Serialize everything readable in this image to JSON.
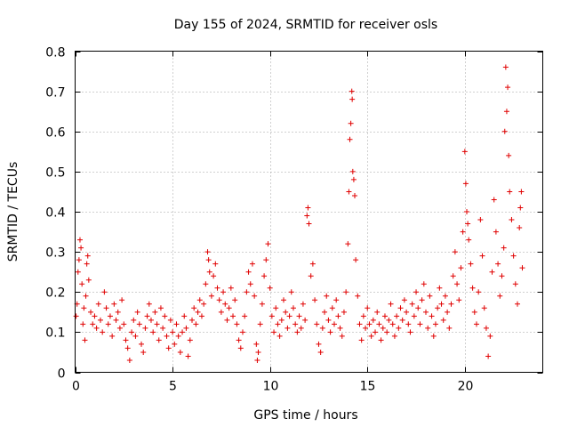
{
  "chart_data": {
    "type": "scatter",
    "title": "Day 155 of 2024, SRMTID for receiver osls",
    "xlabel": "GPS time / hours",
    "ylabel": "SRMTID / TECUs",
    "xlim": [
      0,
      24
    ],
    "ylim": [
      0,
      0.8
    ],
    "xticks": [
      0,
      5,
      10,
      15,
      20
    ],
    "yticks": [
      0,
      0.1,
      0.2,
      0.3,
      0.4,
      0.5,
      0.6,
      0.7,
      0.8
    ],
    "xtick_labels": [
      "0",
      "5",
      "10",
      "15",
      "20"
    ],
    "ytick_labels": [
      "0",
      "0.1",
      "0.2",
      "0.3",
      "0.4",
      "0.5",
      "0.6",
      "0.7",
      "0.8"
    ],
    "grid": true,
    "marker": "+",
    "color": "#e00000",
    "series": [
      {
        "name": "SRMTID",
        "points": [
          [
            0.05,
            0.14
          ],
          [
            0.1,
            0.17
          ],
          [
            0.15,
            0.25
          ],
          [
            0.2,
            0.28
          ],
          [
            0.25,
            0.33
          ],
          [
            0.3,
            0.31
          ],
          [
            0.35,
            0.22
          ],
          [
            0.4,
            0.12
          ],
          [
            0.45,
            0.16
          ],
          [
            0.5,
            0.08
          ],
          [
            0.55,
            0.19
          ],
          [
            0.6,
            0.27
          ],
          [
            0.65,
            0.29
          ],
          [
            0.7,
            0.23
          ],
          [
            0.8,
            0.15
          ],
          [
            0.9,
            0.12
          ],
          [
            1.0,
            0.14
          ],
          [
            1.1,
            0.11
          ],
          [
            1.2,
            0.17
          ],
          [
            1.3,
            0.13
          ],
          [
            1.4,
            0.1
          ],
          [
            1.5,
            0.2
          ],
          [
            1.6,
            0.16
          ],
          [
            1.7,
            0.12
          ],
          [
            1.8,
            0.14
          ],
          [
            1.9,
            0.09
          ],
          [
            2.0,
            0.17
          ],
          [
            2.1,
            0.13
          ],
          [
            2.2,
            0.15
          ],
          [
            2.3,
            0.11
          ],
          [
            2.4,
            0.18
          ],
          [
            2.5,
            0.12
          ],
          [
            2.6,
            0.08
          ],
          [
            2.7,
            0.06
          ],
          [
            2.8,
            0.03
          ],
          [
            2.9,
            0.1
          ],
          [
            3.0,
            0.13
          ],
          [
            3.1,
            0.09
          ],
          [
            3.2,
            0.15
          ],
          [
            3.3,
            0.12
          ],
          [
            3.4,
            0.07
          ],
          [
            3.5,
            0.05
          ],
          [
            3.6,
            0.11
          ],
          [
            3.7,
            0.14
          ],
          [
            3.8,
            0.17
          ],
          [
            3.9,
            0.13
          ],
          [
            4.0,
            0.1
          ],
          [
            4.1,
            0.15
          ],
          [
            4.2,
            0.12
          ],
          [
            4.3,
            0.08
          ],
          [
            4.4,
            0.16
          ],
          [
            4.5,
            0.11
          ],
          [
            4.6,
            0.14
          ],
          [
            4.7,
            0.09
          ],
          [
            4.8,
            0.06
          ],
          [
            4.9,
            0.13
          ],
          [
            5.0,
            0.1
          ],
          [
            5.1,
            0.07
          ],
          [
            5.2,
            0.12
          ],
          [
            5.3,
            0.09
          ],
          [
            5.4,
            0.05
          ],
          [
            5.5,
            0.1
          ],
          [
            5.6,
            0.14
          ],
          [
            5.7,
            0.11
          ],
          [
            5.8,
            0.04
          ],
          [
            5.9,
            0.08
          ],
          [
            6.0,
            0.13
          ],
          [
            6.1,
            0.16
          ],
          [
            6.2,
            0.12
          ],
          [
            6.3,
            0.15
          ],
          [
            6.4,
            0.18
          ],
          [
            6.5,
            0.14
          ],
          [
            6.6,
            0.17
          ],
          [
            6.7,
            0.22
          ],
          [
            6.8,
            0.3
          ],
          [
            6.85,
            0.28
          ],
          [
            6.9,
            0.25
          ],
          [
            7.0,
            0.19
          ],
          [
            7.1,
            0.24
          ],
          [
            7.2,
            0.27
          ],
          [
            7.3,
            0.21
          ],
          [
            7.4,
            0.18
          ],
          [
            7.5,
            0.15
          ],
          [
            7.6,
            0.2
          ],
          [
            7.7,
            0.17
          ],
          [
            7.8,
            0.13
          ],
          [
            7.9,
            0.16
          ],
          [
            8.0,
            0.21
          ],
          [
            8.1,
            0.14
          ],
          [
            8.2,
            0.18
          ],
          [
            8.3,
            0.12
          ],
          [
            8.4,
            0.08
          ],
          [
            8.5,
            0.06
          ],
          [
            8.6,
            0.1
          ],
          [
            8.7,
            0.14
          ],
          [
            8.8,
            0.2
          ],
          [
            8.9,
            0.25
          ],
          [
            9.0,
            0.22
          ],
          [
            9.1,
            0.27
          ],
          [
            9.2,
            0.19
          ],
          [
            9.3,
            0.07
          ],
          [
            9.35,
            0.03
          ],
          [
            9.4,
            0.05
          ],
          [
            9.5,
            0.12
          ],
          [
            9.6,
            0.17
          ],
          [
            9.7,
            0.24
          ],
          [
            9.8,
            0.28
          ],
          [
            9.9,
            0.32
          ],
          [
            10.0,
            0.21
          ],
          [
            10.1,
            0.14
          ],
          [
            10.2,
            0.1
          ],
          [
            10.3,
            0.16
          ],
          [
            10.4,
            0.12
          ],
          [
            10.5,
            0.09
          ],
          [
            10.6,
            0.13
          ],
          [
            10.7,
            0.18
          ],
          [
            10.8,
            0.15
          ],
          [
            10.9,
            0.11
          ],
          [
            11.0,
            0.14
          ],
          [
            11.1,
            0.2
          ],
          [
            11.2,
            0.16
          ],
          [
            11.3,
            0.12
          ],
          [
            11.4,
            0.1
          ],
          [
            11.5,
            0.14
          ],
          [
            11.6,
            0.11
          ],
          [
            11.7,
            0.17
          ],
          [
            11.8,
            0.13
          ],
          [
            11.9,
            0.39
          ],
          [
            11.95,
            0.41
          ],
          [
            12.0,
            0.37
          ],
          [
            12.1,
            0.24
          ],
          [
            12.2,
            0.27
          ],
          [
            12.3,
            0.18
          ],
          [
            12.4,
            0.12
          ],
          [
            12.5,
            0.07
          ],
          [
            12.6,
            0.05
          ],
          [
            12.7,
            0.11
          ],
          [
            12.8,
            0.15
          ],
          [
            12.9,
            0.19
          ],
          [
            13.0,
            0.13
          ],
          [
            13.1,
            0.1
          ],
          [
            13.2,
            0.16
          ],
          [
            13.3,
            0.12
          ],
          [
            13.4,
            0.18
          ],
          [
            13.5,
            0.14
          ],
          [
            13.6,
            0.11
          ],
          [
            13.7,
            0.09
          ],
          [
            13.8,
            0.15
          ],
          [
            13.9,
            0.2
          ],
          [
            14.0,
            0.32
          ],
          [
            14.05,
            0.45
          ],
          [
            14.1,
            0.58
          ],
          [
            14.15,
            0.62
          ],
          [
            14.2,
            0.7
          ],
          [
            14.22,
            0.68
          ],
          [
            14.25,
            0.5
          ],
          [
            14.3,
            0.48
          ],
          [
            14.35,
            0.44
          ],
          [
            14.4,
            0.28
          ],
          [
            14.5,
            0.19
          ],
          [
            14.6,
            0.12
          ],
          [
            14.7,
            0.08
          ],
          [
            14.8,
            0.14
          ],
          [
            14.9,
            0.11
          ],
          [
            15.0,
            0.16
          ],
          [
            15.1,
            0.12
          ],
          [
            15.2,
            0.09
          ],
          [
            15.3,
            0.13
          ],
          [
            15.4,
            0.1
          ],
          [
            15.5,
            0.15
          ],
          [
            15.6,
            0.12
          ],
          [
            15.7,
            0.08
          ],
          [
            15.8,
            0.11
          ],
          [
            15.9,
            0.14
          ],
          [
            16.0,
            0.1
          ],
          [
            16.1,
            0.13
          ],
          [
            16.2,
            0.17
          ],
          [
            16.3,
            0.12
          ],
          [
            16.4,
            0.09
          ],
          [
            16.5,
            0.14
          ],
          [
            16.6,
            0.11
          ],
          [
            16.7,
            0.16
          ],
          [
            16.8,
            0.13
          ],
          [
            16.9,
            0.18
          ],
          [
            17.0,
            0.15
          ],
          [
            17.1,
            0.12
          ],
          [
            17.2,
            0.1
          ],
          [
            17.3,
            0.17
          ],
          [
            17.4,
            0.14
          ],
          [
            17.5,
            0.2
          ],
          [
            17.6,
            0.16
          ],
          [
            17.7,
            0.12
          ],
          [
            17.8,
            0.18
          ],
          [
            17.9,
            0.22
          ],
          [
            18.0,
            0.15
          ],
          [
            18.1,
            0.11
          ],
          [
            18.2,
            0.19
          ],
          [
            18.3,
            0.14
          ],
          [
            18.4,
            0.09
          ],
          [
            18.5,
            0.12
          ],
          [
            18.6,
            0.16
          ],
          [
            18.7,
            0.21
          ],
          [
            18.8,
            0.17
          ],
          [
            18.9,
            0.13
          ],
          [
            19.0,
            0.19
          ],
          [
            19.1,
            0.15
          ],
          [
            19.2,
            0.11
          ],
          [
            19.3,
            0.17
          ],
          [
            19.4,
            0.24
          ],
          [
            19.5,
            0.3
          ],
          [
            19.6,
            0.22
          ],
          [
            19.7,
            0.18
          ],
          [
            19.8,
            0.26
          ],
          [
            19.9,
            0.35
          ],
          [
            20.0,
            0.55
          ],
          [
            20.05,
            0.47
          ],
          [
            20.1,
            0.4
          ],
          [
            20.15,
            0.37
          ],
          [
            20.2,
            0.33
          ],
          [
            20.3,
            0.27
          ],
          [
            20.4,
            0.21
          ],
          [
            20.5,
            0.15
          ],
          [
            20.6,
            0.12
          ],
          [
            20.7,
            0.2
          ],
          [
            20.8,
            0.38
          ],
          [
            20.9,
            0.29
          ],
          [
            21.0,
            0.16
          ],
          [
            21.1,
            0.11
          ],
          [
            21.2,
            0.04
          ],
          [
            21.3,
            0.09
          ],
          [
            21.4,
            0.25
          ],
          [
            21.5,
            0.43
          ],
          [
            21.6,
            0.35
          ],
          [
            21.7,
            0.27
          ],
          [
            21.8,
            0.19
          ],
          [
            21.9,
            0.24
          ],
          [
            22.0,
            0.31
          ],
          [
            22.05,
            0.6
          ],
          [
            22.1,
            0.76
          ],
          [
            22.15,
            0.65
          ],
          [
            22.2,
            0.71
          ],
          [
            22.25,
            0.54
          ],
          [
            22.3,
            0.45
          ],
          [
            22.4,
            0.38
          ],
          [
            22.5,
            0.29
          ],
          [
            22.6,
            0.22
          ],
          [
            22.7,
            0.17
          ],
          [
            22.8,
            0.36
          ],
          [
            22.85,
            0.41
          ],
          [
            22.9,
            0.45
          ],
          [
            22.95,
            0.26
          ]
        ]
      }
    ]
  }
}
